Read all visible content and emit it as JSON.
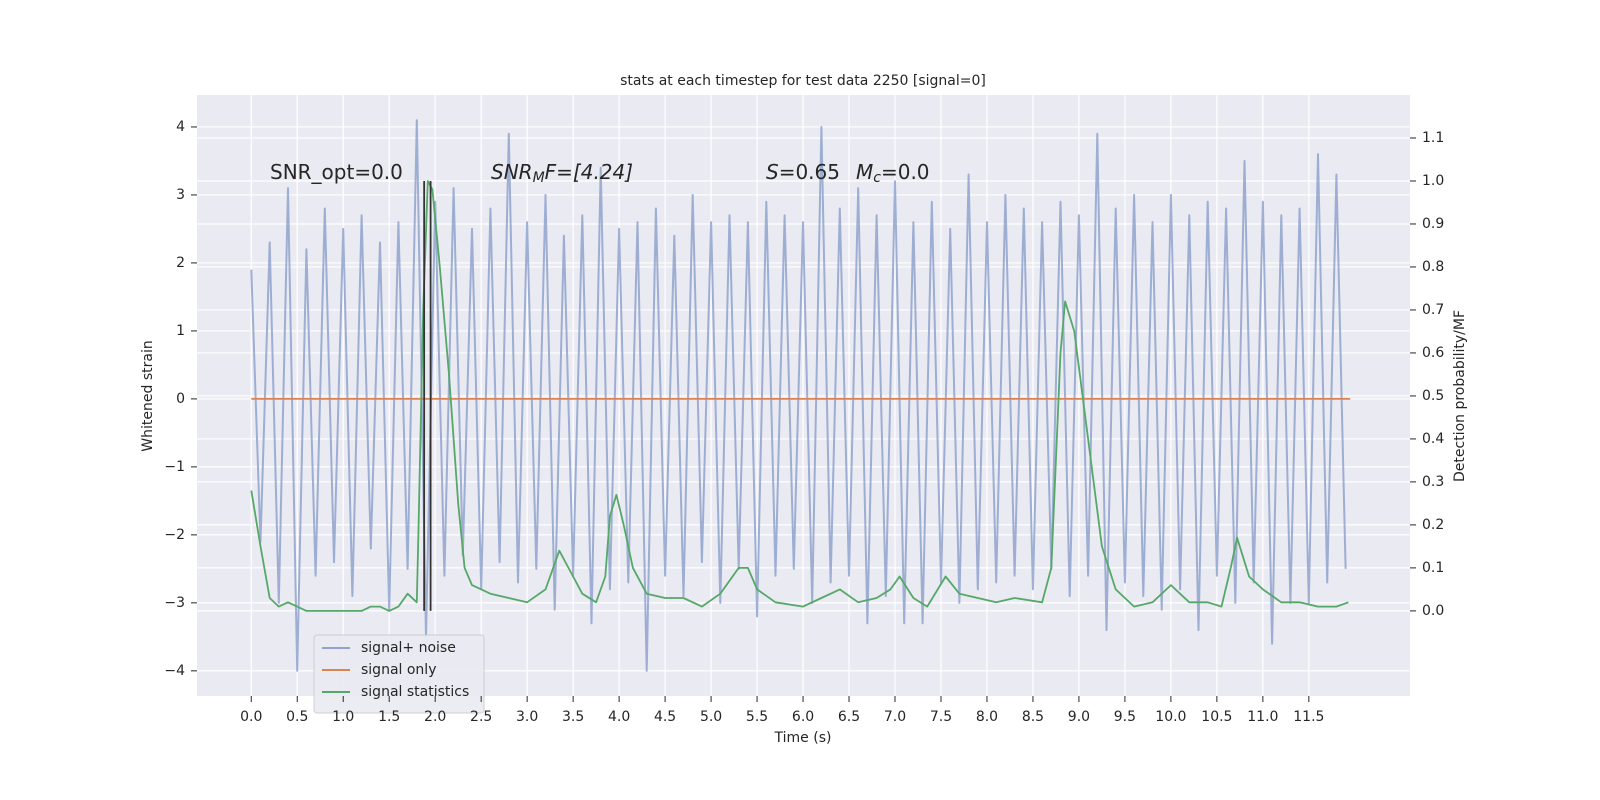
{
  "chart_data": {
    "type": "line",
    "title": "stats at each timestep for test data 2250 [signal=0]",
    "xlabel": "Time (s)",
    "ylabel": "Whitened strain",
    "y2label": "Detection probability/MF",
    "annotations": [
      {
        "parts": [
          "SNR_opt=0.0"
        ]
      },
      {
        "parts": [
          "SNR",
          "M",
          "F=[4.24]"
        ]
      },
      {
        "parts": [
          "S",
          "=0.65",
          "M",
          "c",
          "=0.0"
        ]
      }
    ],
    "xlim": [
      -0.59,
      12.6
    ],
    "ylim": [
      -4.37,
      4.47
    ],
    "y2lim": [
      -0.198,
      1.2
    ],
    "xticks": [
      {
        "value": 0,
        "label": "0.0"
      },
      0.5,
      {
        "value": 1,
        "label": "1.0"
      },
      1.5,
      {
        "value": 2,
        "label": "2.0"
      },
      2.5,
      {
        "value": 3,
        "label": "3.0"
      },
      3.5,
      {
        "value": 4,
        "label": "4.0"
      },
      4.5,
      {
        "value": 5,
        "label": "5.0"
      },
      5.5,
      {
        "value": 6,
        "label": "6.0"
      },
      6.5,
      {
        "value": 7,
        "label": "7.0"
      },
      7.5,
      {
        "value": 8,
        "label": "8.0"
      },
      8.5,
      {
        "value": 9,
        "label": "9.0"
      },
      9.5,
      {
        "value": 10,
        "label": "10.0"
      },
      10.5,
      {
        "value": 11,
        "label": "11.0"
      },
      11.5
    ],
    "yticks": [
      {
        "value": -4,
        "label": "−4"
      },
      {
        "value": -3,
        "label": "−3"
      },
      {
        "value": -2,
        "label": "−2"
      },
      {
        "value": -1,
        "label": "−1"
      },
      0,
      1,
      2,
      3,
      4
    ],
    "y2ticks": [
      {
        "value": 0,
        "label": "0.0"
      },
      0.1,
      0.2,
      0.3,
      0.4,
      0.5,
      0.6,
      0.7,
      0.8,
      0.9,
      {
        "value": 1,
        "label": "1.0"
      },
      1.1
    ],
    "grid": true,
    "legend": "lower left",
    "vlines": {
      "x": [
        1.88,
        1.95
      ],
      "ymin": 0,
      "ymax": 1,
      "color": "#333333",
      "axis": "y2"
    },
    "series": [
      {
        "name": "signal+ noise",
        "color": "#8fa3cc",
        "x": [
          0.0,
          0.1,
          0.2,
          0.3,
          0.4,
          0.5,
          0.6,
          0.7,
          0.8,
          0.9,
          1.0,
          1.1,
          1.2,
          1.3,
          1.4,
          1.5,
          1.6,
          1.7,
          1.8,
          1.9,
          2.0,
          2.1,
          2.2,
          2.3,
          2.4,
          2.5,
          2.6,
          2.7,
          2.8,
          2.9,
          3.0,
          3.1,
          3.2,
          3.3,
          3.4,
          3.5,
          3.6,
          3.7,
          3.8,
          3.9,
          4.0,
          4.1,
          4.2,
          4.3,
          4.4,
          4.5,
          4.6,
          4.7,
          4.8,
          4.9,
          5.0,
          5.1,
          5.2,
          5.3,
          5.4,
          5.5,
          5.6,
          5.7,
          5.8,
          5.9,
          6.0,
          6.1,
          6.2,
          6.3,
          6.4,
          6.5,
          6.6,
          6.7,
          6.8,
          6.9,
          7.0,
          7.1,
          7.2,
          7.3,
          7.4,
          7.5,
          7.6,
          7.7,
          7.8,
          7.9,
          8.0,
          8.1,
          8.2,
          8.3,
          8.4,
          8.5,
          8.6,
          8.7,
          8.8,
          8.9,
          9.0,
          9.1,
          9.2,
          9.3,
          9.4,
          9.5,
          9.6,
          9.7,
          9.8,
          9.9,
          10.0,
          10.1,
          10.2,
          10.3,
          10.4,
          10.5,
          10.6,
          10.7,
          10.8,
          10.9,
          11.0,
          11.1,
          11.2,
          11.3,
          11.4,
          11.5,
          11.6,
          11.7,
          11.8,
          11.9
        ],
        "values": [
          1.9,
          -2.1,
          2.3,
          -3.0,
          3.1,
          -4.0,
          2.2,
          -2.6,
          2.8,
          -2.4,
          2.5,
          -2.9,
          2.7,
          -2.2,
          2.3,
          -3.1,
          2.6,
          -2.5,
          4.1,
          -3.5,
          2.9,
          -2.6,
          3.1,
          -2.3,
          2.5,
          -2.8,
          2.8,
          -2.4,
          3.9,
          -2.7,
          2.6,
          -2.5,
          3.0,
          -3.1,
          2.4,
          -2.6,
          2.7,
          -3.3,
          3.4,
          -2.8,
          2.5,
          -2.7,
          2.6,
          -4.0,
          2.8,
          -2.6,
          2.4,
          -2.9,
          3.0,
          -2.4,
          2.6,
          -3.0,
          2.7,
          -2.5,
          2.6,
          -3.2,
          2.9,
          -2.6,
          2.7,
          -2.5,
          2.6,
          -3.0,
          4.0,
          -2.7,
          2.8,
          -2.6,
          3.1,
          -3.3,
          2.7,
          -2.9,
          3.2,
          -3.3,
          2.6,
          -3.3,
          2.9,
          -2.7,
          2.5,
          -3.0,
          3.3,
          -2.8,
          2.6,
          -2.7,
          3.0,
          -2.6,
          2.8,
          -2.8,
          2.6,
          -2.5,
          2.9,
          -2.9,
          2.7,
          -2.6,
          3.9,
          -3.4,
          2.8,
          -2.7,
          3.0,
          -2.9,
          2.6,
          -3.1,
          3.0,
          -2.8,
          2.7,
          -3.4,
          2.9,
          -2.6,
          2.8,
          -3.0,
          3.5,
          -2.7,
          2.9,
          -3.6,
          2.7,
          -3.0,
          2.8,
          -3.0,
          3.6,
          -2.7,
          3.3,
          -2.5
        ]
      },
      {
        "name": "signal only",
        "color": "#dd8452",
        "x": [
          0,
          11.95
        ],
        "values": [
          0,
          0
        ]
      },
      {
        "name": "signal statistics",
        "color": "#55a868",
        "axis": "y2",
        "x": [
          0,
          0.1,
          0.2,
          0.3,
          0.4,
          0.5,
          0.6,
          0.8,
          1.0,
          1.2,
          1.3,
          1.4,
          1.5,
          1.6,
          1.7,
          1.8,
          1.82,
          1.87,
          1.92,
          1.97,
          2.05,
          2.15,
          2.25,
          2.32,
          2.4,
          2.6,
          2.8,
          3.0,
          3.2,
          3.35,
          3.5,
          3.6,
          3.75,
          3.85,
          3.9,
          3.97,
          4.05,
          4.15,
          4.3,
          4.5,
          4.7,
          4.9,
          5.1,
          5.3,
          5.4,
          5.5,
          5.7,
          6.0,
          6.2,
          6.4,
          6.6,
          6.8,
          6.95,
          7.05,
          7.2,
          7.35,
          7.55,
          7.7,
          7.9,
          8.1,
          8.3,
          8.6,
          8.7,
          8.8,
          8.85,
          8.95,
          9.1,
          9.25,
          9.4,
          9.6,
          9.8,
          10.0,
          10.2,
          10.4,
          10.55,
          10.65,
          10.72,
          10.85,
          11.0,
          11.2,
          11.4,
          11.6,
          11.8,
          11.93
        ],
        "values": [
          0.28,
          0.15,
          0.03,
          0.01,
          0.02,
          0.01,
          0.0,
          0.0,
          0.0,
          0.0,
          0.01,
          0.01,
          0.0,
          0.01,
          0.04,
          0.02,
          0.2,
          0.7,
          1.0,
          0.98,
          0.8,
          0.55,
          0.25,
          0.1,
          0.06,
          0.04,
          0.03,
          0.02,
          0.05,
          0.14,
          0.08,
          0.04,
          0.02,
          0.08,
          0.22,
          0.27,
          0.2,
          0.1,
          0.04,
          0.03,
          0.03,
          0.01,
          0.04,
          0.1,
          0.1,
          0.05,
          0.02,
          0.01,
          0.03,
          0.05,
          0.02,
          0.03,
          0.05,
          0.08,
          0.03,
          0.01,
          0.08,
          0.04,
          0.03,
          0.02,
          0.03,
          0.02,
          0.1,
          0.6,
          0.72,
          0.65,
          0.4,
          0.15,
          0.05,
          0.01,
          0.02,
          0.06,
          0.02,
          0.02,
          0.01,
          0.1,
          0.17,
          0.08,
          0.05,
          0.02,
          0.02,
          0.01,
          0.01,
          0.02
        ]
      }
    ]
  }
}
